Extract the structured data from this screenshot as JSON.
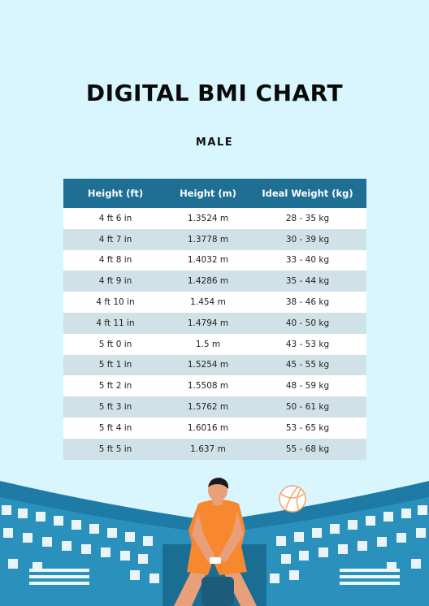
{
  "document": {
    "title": "DIGITAL BMI CHART",
    "subtitle": "MALE"
  },
  "table": {
    "headers": [
      "Height (ft)",
      "Height (m)",
      "Ideal Weight (kg)"
    ],
    "rows": [
      [
        "4 ft 6 in",
        "1.3524 m",
        "28 - 35 kg"
      ],
      [
        "4 ft 7 in",
        "1.3778 m",
        "30 - 39 kg"
      ],
      [
        "4 ft 8 in",
        "1.4032 m",
        "33 - 40 kg"
      ],
      [
        "4 ft 9 in",
        "1.4286 m",
        "35 - 44 kg"
      ],
      [
        "4 ft 10 in",
        "1.454 m",
        "38 - 46 kg"
      ],
      [
        "4 ft 11 in",
        "1.4794 m",
        "40 - 50 kg"
      ],
      [
        "5 ft 0 in",
        "1.5 m",
        "43 - 53 kg"
      ],
      [
        "5 ft 1 in",
        "1.5254 m",
        "45 - 55 kg"
      ],
      [
        "5 ft 2 in",
        "1.5508 m",
        "48 - 59 kg"
      ],
      [
        "5 ft 3 in",
        "1.5762 m",
        "50 - 61 kg"
      ],
      [
        "5 ft 4 in",
        "1.6016 m",
        "53 - 65 kg"
      ],
      [
        "5 ft 5 in",
        "1.637 m",
        "55 - 68 kg"
      ]
    ]
  },
  "colors": {
    "background": "#d9f5fd",
    "header": "#1e6f93",
    "row_alt": "#d0e2e7",
    "stadium": "#1e7ba5",
    "player_shirt": "#f7882f"
  },
  "illustration": {
    "icons": [
      "volleyball-player",
      "volleyball-icon",
      "stadium-stands"
    ]
  }
}
